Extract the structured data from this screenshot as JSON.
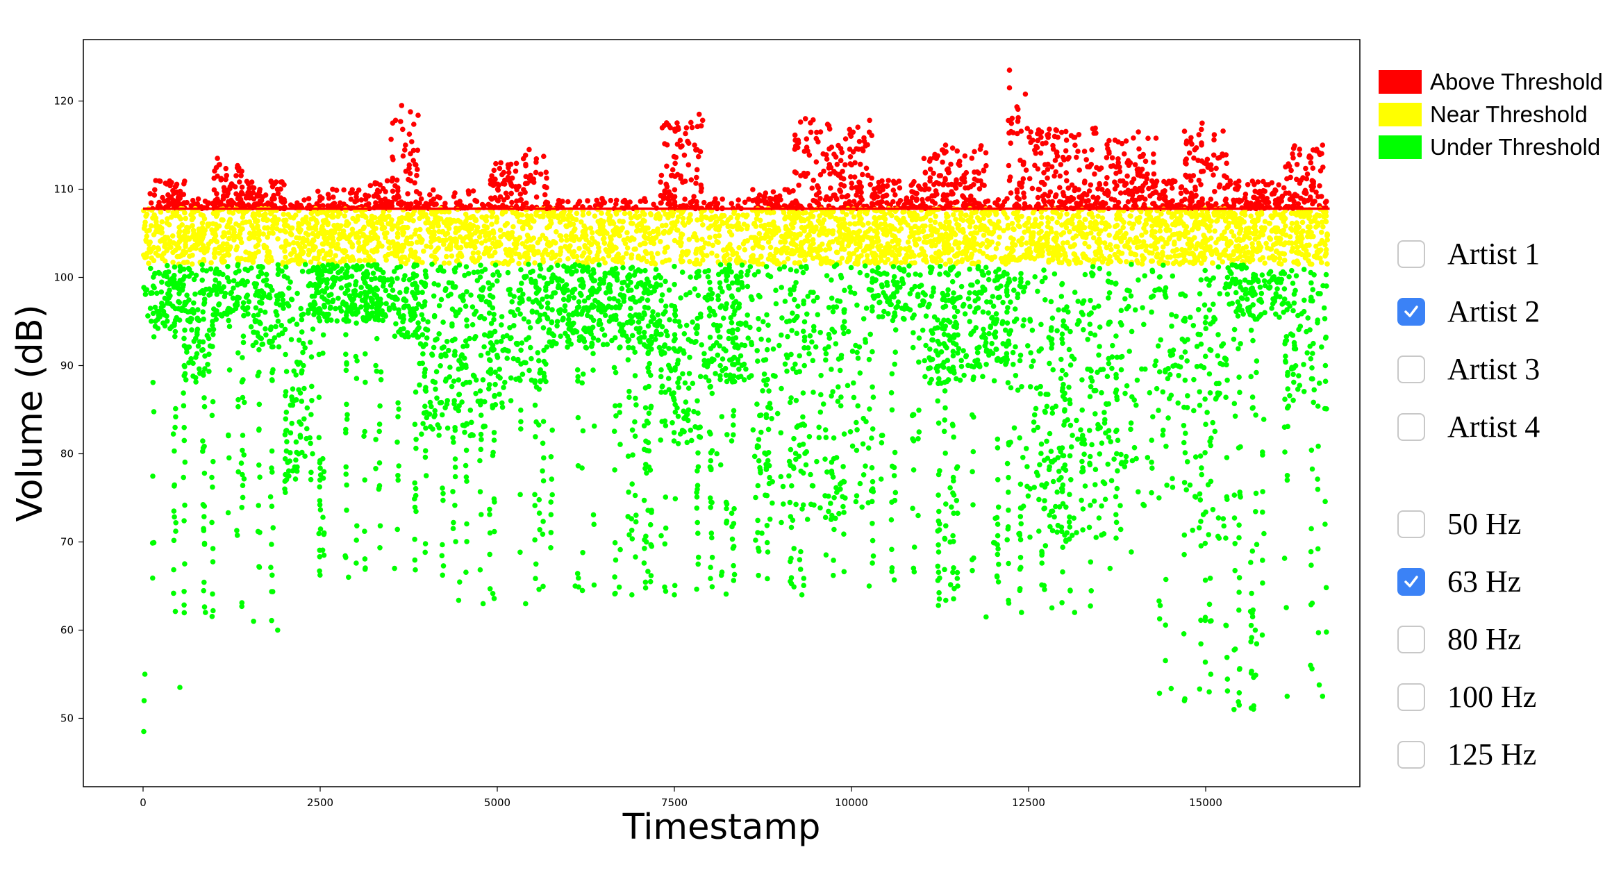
{
  "chart_data": {
    "type": "scatter",
    "title": "",
    "xlabel": "Timestamp",
    "ylabel": "Volume (dB)",
    "xlim": [
      -850,
      17200
    ],
    "ylim": [
      42,
      127
    ],
    "xticks": [
      0,
      2500,
      5000,
      7500,
      10000,
      12500,
      15000
    ],
    "yticks": [
      50,
      60,
      70,
      80,
      90,
      100,
      110,
      120
    ],
    "threshold": 107.8,
    "near_band": [
      101.5,
      107.8
    ],
    "series_colors": {
      "above": "#ff0000",
      "near": "#ffff00",
      "under": "#00ff00",
      "threshold_line": "#ff0000"
    },
    "x_extent": [
      0,
      16720
    ],
    "series": [
      {
        "name": "Above Threshold",
        "color": "#ff0000",
        "x": [
          100,
          1050,
          3650,
          5050,
          5450,
          7750,
          7850,
          9350,
          9600,
          10050,
          12230,
          12230,
          13850,
          14050,
          14950,
          16650
        ],
        "y": [
          109.5,
          113.5,
          119.5,
          113,
          114.5,
          117,
          118.5,
          118,
          114,
          113,
          123.5,
          121.5,
          114,
          116.5,
          117.5,
          115
        ]
      },
      {
        "name": "Near Threshold",
        "color": "#ffff00",
        "x": [
          100,
          900,
          2300,
          3500,
          5000,
          6450,
          7350,
          9000,
          10800,
          12550,
          14300,
          16000
        ],
        "y": [
          104,
          103,
          105,
          106,
          104,
          106,
          105,
          104,
          104,
          105,
          104,
          103
        ]
      },
      {
        "name": "Under Threshold",
        "color": "#00ff00",
        "x": [
          10,
          15,
          25,
          520,
          880,
          1560,
          1900,
          2000,
          2900,
          3550,
          4800,
          5400,
          6100,
          6900,
          7500,
          8100,
          8400,
          9300,
          10250,
          11500,
          11900,
          12400,
          13150,
          13650,
          14700,
          15050,
          15400,
          15700,
          16150,
          16480,
          16650
        ],
        "y": [
          48.5,
          52,
          55,
          53.5,
          62,
          61,
          60,
          76,
          66,
          67,
          63,
          63,
          65,
          64,
          64,
          80,
          92,
          64,
          65,
          65,
          61.5,
          62,
          62,
          67,
          52,
          53,
          51,
          60,
          52.5,
          56,
          52.5
        ]
      }
    ]
  },
  "legend": {
    "items": [
      {
        "label": "Above Threshold",
        "color": "#ff0000"
      },
      {
        "label": "Near Threshold",
        "color": "#ffff00"
      },
      {
        "label": "Under Threshold",
        "color": "#00ff00"
      }
    ]
  },
  "artists": [
    {
      "label": "Artist 1",
      "checked": false
    },
    {
      "label": "Artist 2",
      "checked": true
    },
    {
      "label": "Artist 3",
      "checked": false
    },
    {
      "label": "Artist 4",
      "checked": false
    }
  ],
  "frequencies": [
    {
      "label": "50 Hz",
      "checked": false
    },
    {
      "label": "63 Hz",
      "checked": true
    },
    {
      "label": "80 Hz",
      "checked": false
    },
    {
      "label": "100 Hz",
      "checked": false
    },
    {
      "label": "125 Hz",
      "checked": false
    }
  ],
  "checkbox_accent": "#3b82f6"
}
